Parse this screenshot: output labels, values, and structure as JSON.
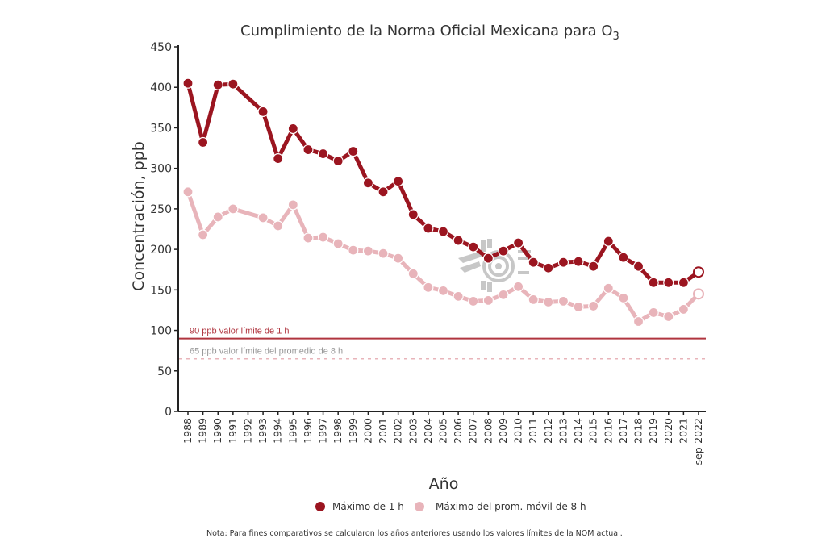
{
  "chart_data": {
    "type": "line",
    "title": "Cumplimiento de la Norma Oficial Mexicana para O",
    "title_subscript": "3",
    "xlabel": "Año",
    "ylabel": "Concentración, ppb",
    "ylim": [
      0,
      450
    ],
    "yticks": [
      0,
      50,
      100,
      150,
      200,
      250,
      300,
      350,
      400,
      450
    ],
    "categories": [
      "1988",
      "1989",
      "1990",
      "1991",
      "1992",
      "1993",
      "1994",
      "1995",
      "1996",
      "1997",
      "1998",
      "1999",
      "2000",
      "2001",
      "2002",
      "2003",
      "2004",
      "2005",
      "2006",
      "2007",
      "2008",
      "2009",
      "2010",
      "2011",
      "2012",
      "2013",
      "2014",
      "2015",
      "2016",
      "2017",
      "2018",
      "2019",
      "2020",
      "2021",
      "sep-2022"
    ],
    "series": [
      {
        "name": "Máximo de 1 h",
        "color": "#9b1520",
        "values": [
          405,
          332,
          403,
          404,
          null,
          370,
          312,
          349,
          323,
          318,
          309,
          321,
          282,
          271,
          284,
          243,
          226,
          222,
          211,
          203,
          189,
          198,
          208,
          184,
          177,
          184,
          185,
          179,
          210,
          190,
          179,
          159,
          159,
          159,
          172
        ],
        "last_point_open": true
      },
      {
        "name": "Máximo del prom. móvil de 8 h",
        "color": "#e8b4ba",
        "values": [
          271,
          218,
          240,
          250,
          null,
          239,
          229,
          255,
          214,
          215,
          207,
          199,
          198,
          195,
          189,
          170,
          153,
          149,
          142,
          136,
          137,
          144,
          154,
          138,
          135,
          136,
          129,
          130,
          152,
          140,
          111,
          122,
          117,
          126,
          145
        ],
        "last_point_open": true
      }
    ],
    "reference_lines": [
      {
        "value": 90,
        "label": "90 ppb valor límite de 1 h",
        "color": "#b0353f",
        "style": "solid"
      },
      {
        "value": 65,
        "label": "65 ppb valor límite del promedio de 8 h",
        "color": "#e8b4ba",
        "label_color": "#999999",
        "style": "dashed"
      }
    ],
    "legend_position": "bottom",
    "grid": false
  },
  "legend": [
    {
      "label": "Máximo de 1 h",
      "color": "#9b1520"
    },
    {
      "label": "Máximo del prom. móvil de 8 h",
      "color": "#e8b4ba"
    }
  ],
  "note": "Nota: Para fines comparativos se calcularon los años anteriores usando los valores límites de la NOM actual.",
  "watermark": "logo"
}
